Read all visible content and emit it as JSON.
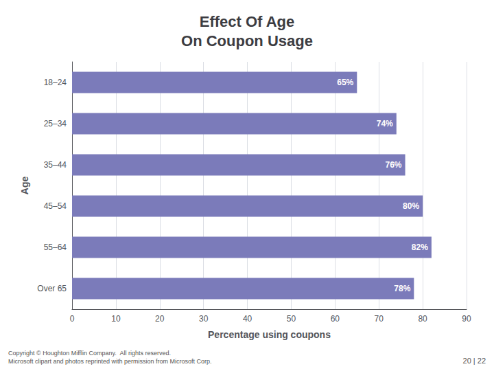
{
  "chart_data": {
    "type": "bar",
    "orientation": "horizontal",
    "title": "Effect Of Age\nOn Coupon Usage",
    "xlabel": "Percentage using coupons",
    "ylabel": "Age",
    "categories": [
      "18–24",
      "25–34",
      "35–44",
      "45–54",
      "55–64",
      "Over 65"
    ],
    "values": [
      65,
      74,
      76,
      80,
      82,
      78
    ],
    "value_labels": [
      "65%",
      "74%",
      "76%",
      "80%",
      "82%",
      "78%"
    ],
    "data_labels": true,
    "color": "#7b7bba",
    "xlim": [
      0,
      90
    ],
    "xticks": [
      0,
      10,
      20,
      30,
      40,
      50,
      60,
      70,
      80,
      90
    ],
    "grid": true,
    "annotations": [
      "Copyright © Houghton Mifflin Company.  All rights reserved.\nMicrosoft clipart and photos reprinted with permission from Microsoft Corp.",
      "20 | 22"
    ]
  }
}
